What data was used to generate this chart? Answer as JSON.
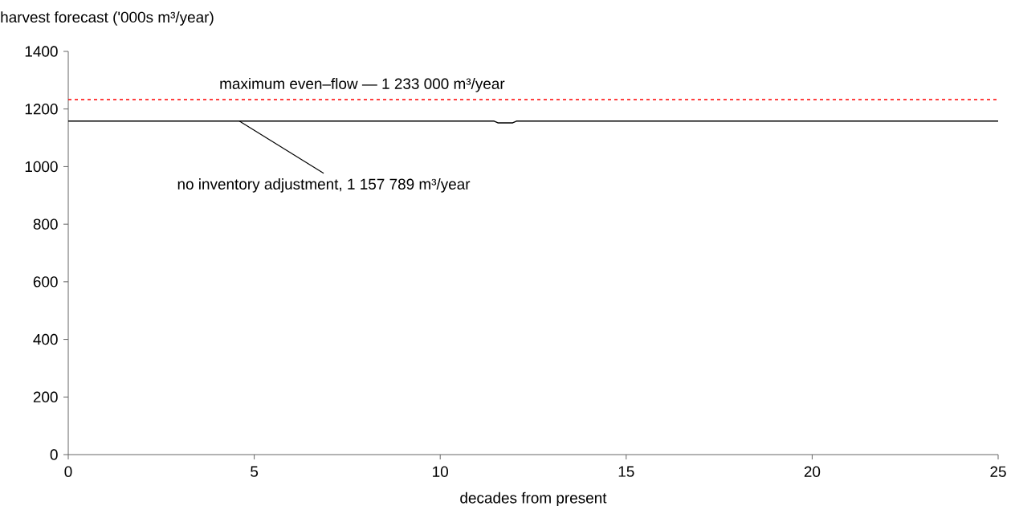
{
  "chart_data": {
    "type": "line",
    "xlabel": "decades from present",
    "ylabel": "harvest forecast ('000s m³/year)",
    "xlim": [
      0,
      25
    ],
    "xticks": [
      0,
      5,
      10,
      15,
      20,
      25
    ],
    "ylim": [
      0,
      1400
    ],
    "yticks": [
      0,
      200,
      400,
      600,
      800,
      1000,
      1200,
      1400
    ],
    "series": [
      {
        "color": "#000000",
        "x": [
          0,
          11.45,
          11.55,
          11.95,
          12.05,
          25
        ],
        "values": [
          1157.789,
          1157.789,
          1152,
          1152,
          1157.789,
          1157.789
        ]
      }
    ],
    "ref_lines": [
      {
        "axis": "y",
        "value": 1233,
        "label": "maximum even–flow — 1 233 000 m³/year",
        "color": "#ff0000",
        "line_style": "dotted"
      }
    ],
    "annotations": [
      {
        "text": "no inventory adjustment, 1 157 789 m³/year",
        "x": 4.6,
        "y": 1157.789
      }
    ],
    "grid": false,
    "marker": "none",
    "line_style": "solid"
  }
}
